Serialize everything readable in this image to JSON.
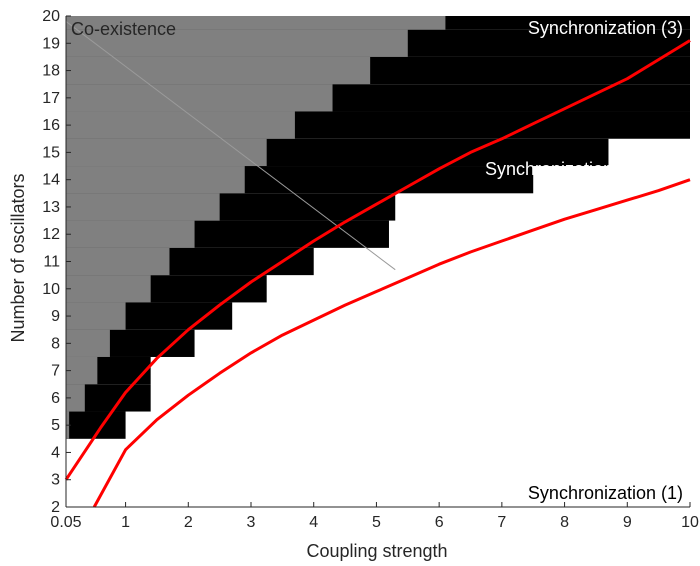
{
  "chart_data": {
    "type": "heatmap",
    "title": "",
    "xlabel": "Coupling strength",
    "ylabel": "Number of oscillators",
    "xlim": [
      0.05,
      10
    ],
    "ylim": [
      2,
      20
    ],
    "x_ticks": [
      0.05,
      1,
      2,
      3,
      4,
      5,
      6,
      7,
      8,
      9,
      10
    ],
    "x_tick_labels": [
      "0.05",
      "1",
      "2",
      "3",
      "4",
      "5",
      "6",
      "7",
      "8",
      "9",
      "10"
    ],
    "y_ticks": [
      2,
      3,
      4,
      5,
      6,
      7,
      8,
      9,
      10,
      11,
      12,
      13,
      14,
      15,
      16,
      17,
      18,
      19,
      20
    ],
    "y_tick_labels": [
      "2",
      "3",
      "4",
      "5",
      "6",
      "7",
      "8",
      "9",
      "10",
      "11",
      "12",
      "13",
      "14",
      "15",
      "16",
      "17",
      "18",
      "19",
      "20"
    ],
    "grid": false,
    "regions": [
      {
        "name": "Co-existence",
        "color": "#808080"
      },
      {
        "name": "Synchronization (2)",
        "color": "#000000"
      },
      {
        "name": "Synchronization (3)",
        "color": "#000000"
      },
      {
        "name": "Synchronization (1)",
        "color": "#ffffff"
      }
    ],
    "region_labels": {
      "coexistence": "Co-existence",
      "sync3": "Synchronization (3)",
      "sync2": "Synchronization (2)",
      "sync1": "Synchronization (1)"
    },
    "n_values": [
      2,
      3,
      4,
      5,
      6,
      7,
      8,
      9,
      10,
      11,
      12,
      13,
      14,
      15,
      16,
      17,
      18,
      19,
      20
    ],
    "black_lower_k": [
      0.05,
      0.05,
      0.05,
      1.0,
      1.4,
      1.4,
      2.1,
      2.7,
      3.25,
      4.0,
      5.2,
      5.3,
      7.5,
      8.7,
      10,
      10,
      10,
      10,
      10
    ],
    "grey_upper_k": [
      0.05,
      0.05,
      0.05,
      0.1,
      0.35,
      0.55,
      0.75,
      1.0,
      1.4,
      1.7,
      2.1,
      2.5,
      2.9,
      3.25,
      3.7,
      4.3,
      4.9,
      5.5,
      6.1
    ],
    "separator_line": {
      "from": [
        0.05,
        19.8
      ],
      "to": [
        5.3,
        10.7
      ],
      "color": "#9a9a9a"
    },
    "series": [
      {
        "color": "#ff0000",
        "x": [
          0.05,
          0.6,
          1.0,
          1.5,
          2.0,
          2.5,
          3.0,
          3.5,
          4.0,
          4.5,
          5.0,
          5.5,
          6.0,
          6.5,
          7.0,
          7.5,
          8.0,
          8.5,
          9.0,
          9.5,
          10.0
        ],
        "y": [
          3.0,
          4.9,
          6.2,
          7.45,
          8.5,
          9.4,
          10.25,
          11.0,
          11.75,
          12.45,
          13.1,
          13.75,
          14.4,
          15.0,
          15.5,
          16.05,
          16.6,
          17.15,
          17.7,
          18.4,
          19.1
        ]
      },
      {
        "color": "#ff0000",
        "x": [
          0.5,
          1.0,
          1.5,
          2.0,
          2.5,
          3.0,
          3.5,
          4.0,
          4.5,
          5.0,
          5.5,
          6.0,
          6.5,
          7.0,
          7.5,
          8.0,
          8.5,
          9.0,
          9.5,
          10.0
        ],
        "y": [
          2.0,
          4.1,
          5.2,
          6.1,
          6.9,
          7.65,
          8.3,
          8.85,
          9.4,
          9.9,
          10.4,
          10.9,
          11.35,
          11.75,
          12.15,
          12.55,
          12.9,
          13.25,
          13.6,
          14.0
        ]
      }
    ]
  }
}
